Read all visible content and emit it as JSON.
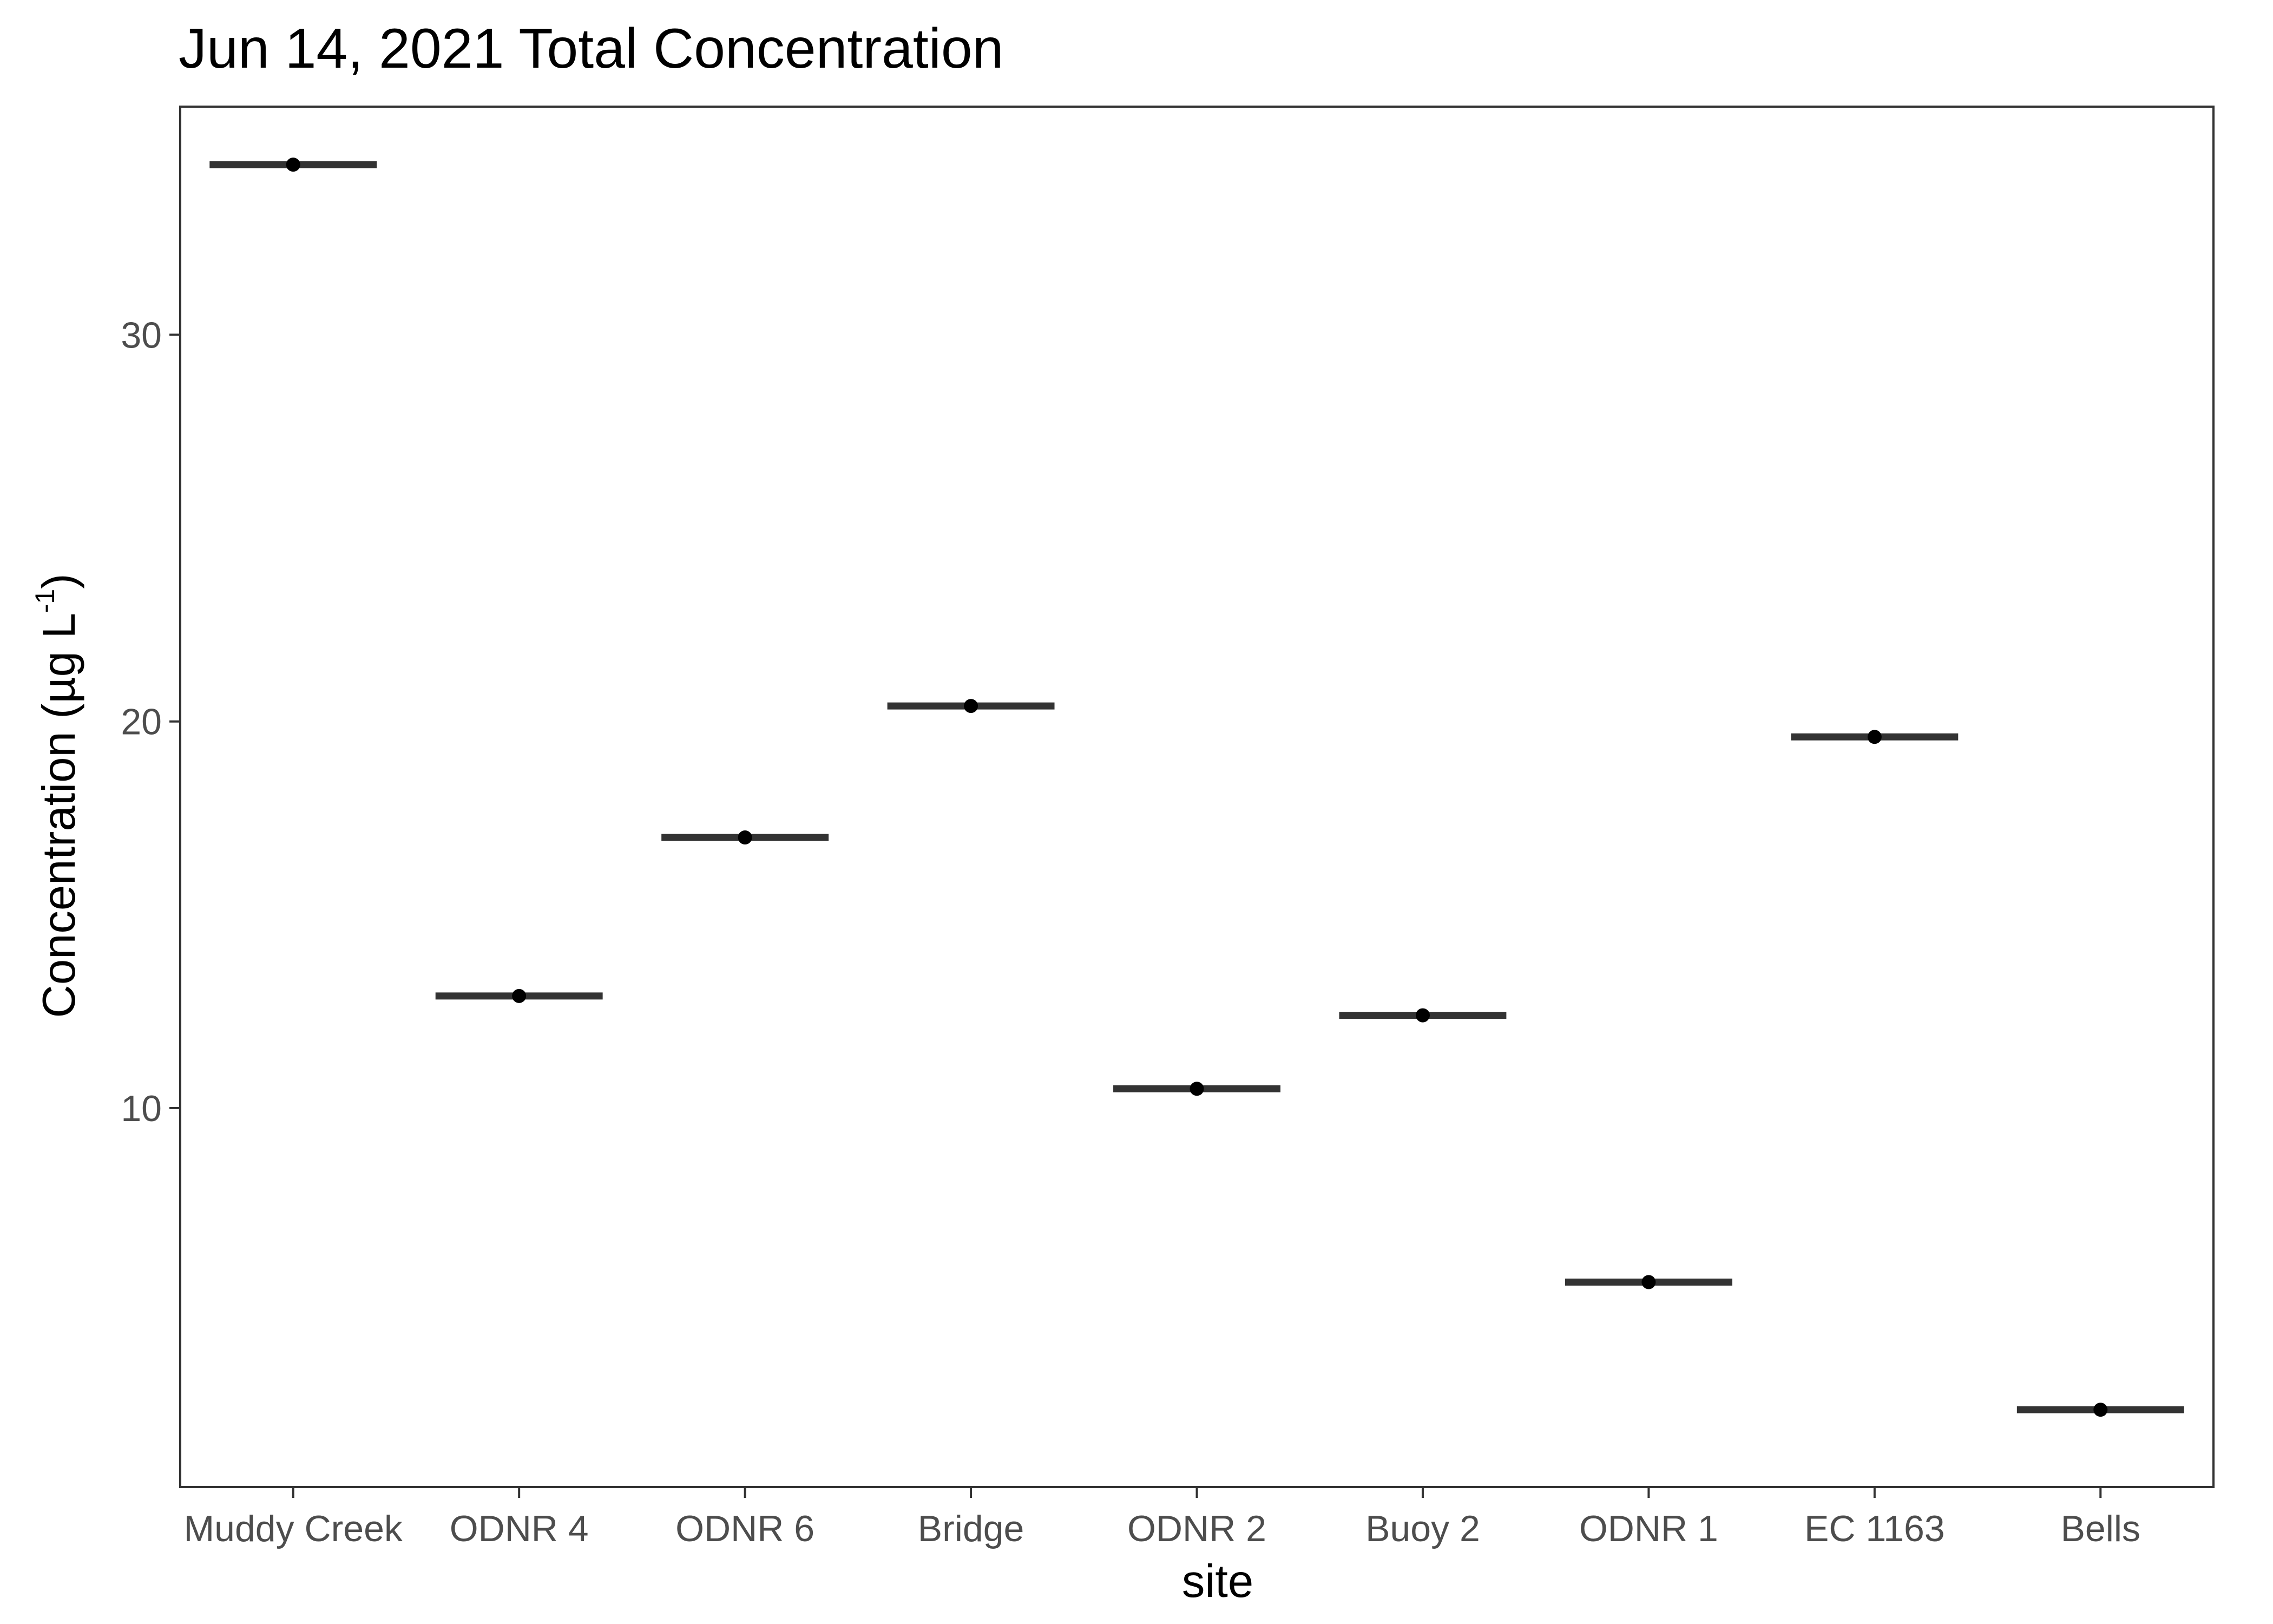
{
  "chart_data": {
    "type": "crossbar",
    "title": "Jun 14, 2021 Total Concentration",
    "xlabel": "site",
    "ylabel": {
      "main": "Concentration (µg L",
      "superscript": "-1",
      "close": ")"
    },
    "categories": [
      "Muddy Creek",
      "ODNR 4",
      "ODNR 6",
      "Bridge",
      "ODNR 2",
      "Buoy 2",
      "ODNR 1",
      "EC 1163",
      "Bells"
    ],
    "values": [
      34.4,
      12.9,
      17.0,
      20.4,
      10.5,
      12.4,
      5.5,
      19.6,
      2.2
    ],
    "yticks": [
      10,
      20,
      30
    ],
    "ylim": [
      0.2,
      35.9
    ],
    "grid": false,
    "legend": "none",
    "colors": {
      "bar": "#333333",
      "point": "#000000",
      "panel_border": "#333333",
      "tick": "#333333",
      "tick_label": "#4d4d4d"
    }
  }
}
